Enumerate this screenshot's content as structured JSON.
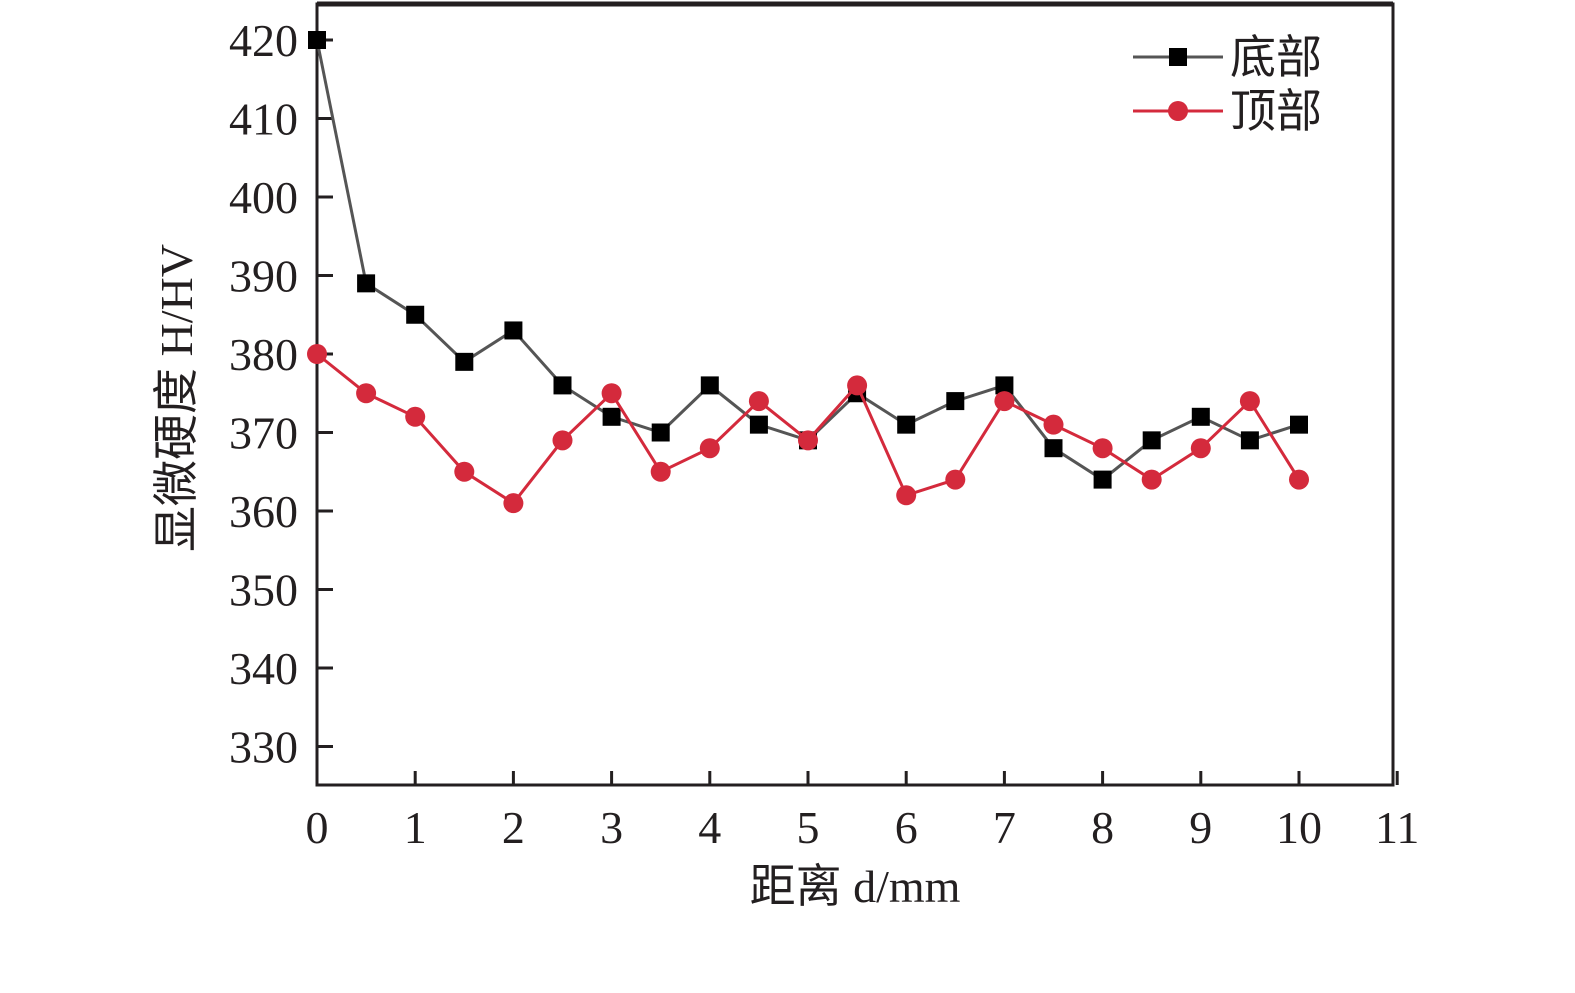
{
  "chart_data": {
    "type": "line",
    "xlabel": "距离 d/mm",
    "ylabel": "显微硬度 H/HV",
    "xlim": [
      0,
      11
    ],
    "ylim": [
      325,
      425
    ],
    "x_ticks": [
      "0",
      "1",
      "2",
      "3",
      "4",
      "5",
      "6",
      "7",
      "8",
      "9",
      "10",
      "11"
    ],
    "y_ticks": [
      "330",
      "340",
      "350",
      "360",
      "370",
      "380",
      "390",
      "400",
      "410",
      "420"
    ],
    "grid": false,
    "legend_position": "top-right",
    "series": [
      {
        "name": "底部",
        "color": "#555555",
        "marker": "square",
        "marker_color": "#000000",
        "x": [
          0,
          0.5,
          1,
          1.5,
          2,
          2.5,
          3,
          3.5,
          4,
          4.5,
          5,
          5.5,
          6,
          6.5,
          7,
          7.5,
          8,
          8.5,
          9,
          9.5,
          10
        ],
        "y": [
          420,
          389,
          385,
          379,
          383,
          376,
          372,
          370,
          376,
          371,
          369,
          375,
          371,
          374,
          376,
          368,
          364,
          369,
          372,
          369,
          371
        ]
      },
      {
        "name": "顶部",
        "color": "#d42a3c",
        "marker": "circle",
        "marker_color": "#d42a3c",
        "x": [
          0,
          0.5,
          1,
          1.5,
          2,
          2.5,
          3,
          3.5,
          4,
          4.5,
          5,
          5.5,
          6,
          6.5,
          7,
          7.5,
          8,
          8.5,
          9,
          9.5,
          10
        ],
        "y": [
          380,
          375,
          372,
          365,
          361,
          369,
          375,
          365,
          368,
          374,
          369,
          376,
          362,
          364,
          374,
          371,
          368,
          364,
          368,
          374,
          364
        ]
      }
    ]
  }
}
